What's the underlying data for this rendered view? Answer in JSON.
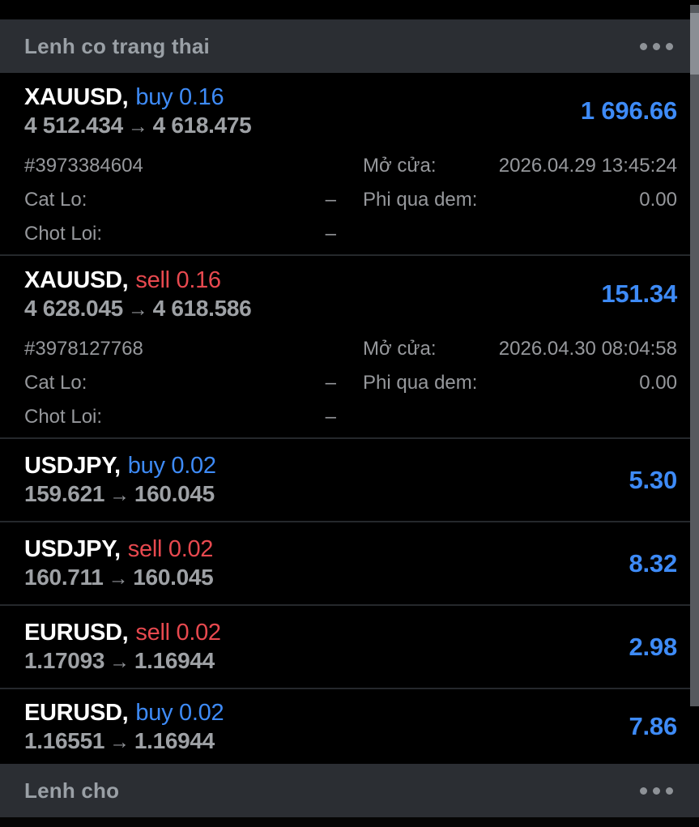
{
  "colors": {
    "background": "#000000",
    "section_bar": "#2b2e33",
    "section_text": "#9aa0a6",
    "buy_blue": "#3e8bf7",
    "sell_red": "#e8494f",
    "profit_blue": "#3e8bf7",
    "symbol_white": "#ffffff",
    "price_gray": "#9ea1a5",
    "detail_gray": "#96989c",
    "divider": "#25282c",
    "scrollbar_track": "#56595e",
    "scrollbar_thumb": "#8a8e94"
  },
  "sections": {
    "positions_header": {
      "title": "Lenh co trang thai",
      "menu_icon": "more-horizontal-icon"
    },
    "pending_header": {
      "title": "Lenh cho",
      "menu_icon": "more-horizontal-icon"
    }
  },
  "positions": [
    {
      "symbol": "XAUUSD,",
      "direction": "buy 0.16",
      "direction_type": "buy",
      "open_price": "4 512.434",
      "arrow": "→",
      "current_price": "4 618.475",
      "profit": "1 696.66",
      "details": {
        "ticket": "#3973384604",
        "open_time_label": "Mở cửa:",
        "open_time": "2026.04.29 13:45:24",
        "sl_label": "Cat Lo:",
        "sl_value": "–",
        "swap_label": "Phi qua dem:",
        "swap_value": "0.00",
        "tp_label": "Chot Loi:",
        "tp_value": "–"
      }
    },
    {
      "symbol": "XAUUSD,",
      "direction": "sell 0.16",
      "direction_type": "sell",
      "open_price": "4 628.045",
      "arrow": "→",
      "current_price": "4 618.586",
      "profit": "151.34",
      "details": {
        "ticket": "#3978127768",
        "open_time_label": "Mở cửa:",
        "open_time": "2026.04.30 08:04:58",
        "sl_label": "Cat Lo:",
        "sl_value": "–",
        "swap_label": "Phi qua dem:",
        "swap_value": "0.00",
        "tp_label": "Chot Loi:",
        "tp_value": "–"
      }
    },
    {
      "symbol": "USDJPY,",
      "direction": "buy 0.02",
      "direction_type": "buy",
      "open_price": "159.621",
      "arrow": "→",
      "current_price": "160.045",
      "profit": "5.30"
    },
    {
      "symbol": "USDJPY,",
      "direction": "sell 0.02",
      "direction_type": "sell",
      "open_price": "160.711",
      "arrow": "→",
      "current_price": "160.045",
      "profit": "8.32"
    },
    {
      "symbol": "EURUSD,",
      "direction": "sell 0.02",
      "direction_type": "sell",
      "open_price": "1.17093",
      "arrow": "→",
      "current_price": "1.16944",
      "profit": "2.98"
    },
    {
      "symbol": "EURUSD,",
      "direction": "buy 0.02",
      "direction_type": "buy",
      "open_price": "1.16551",
      "arrow": "→",
      "current_price": "1.16944",
      "profit": "7.86"
    }
  ]
}
